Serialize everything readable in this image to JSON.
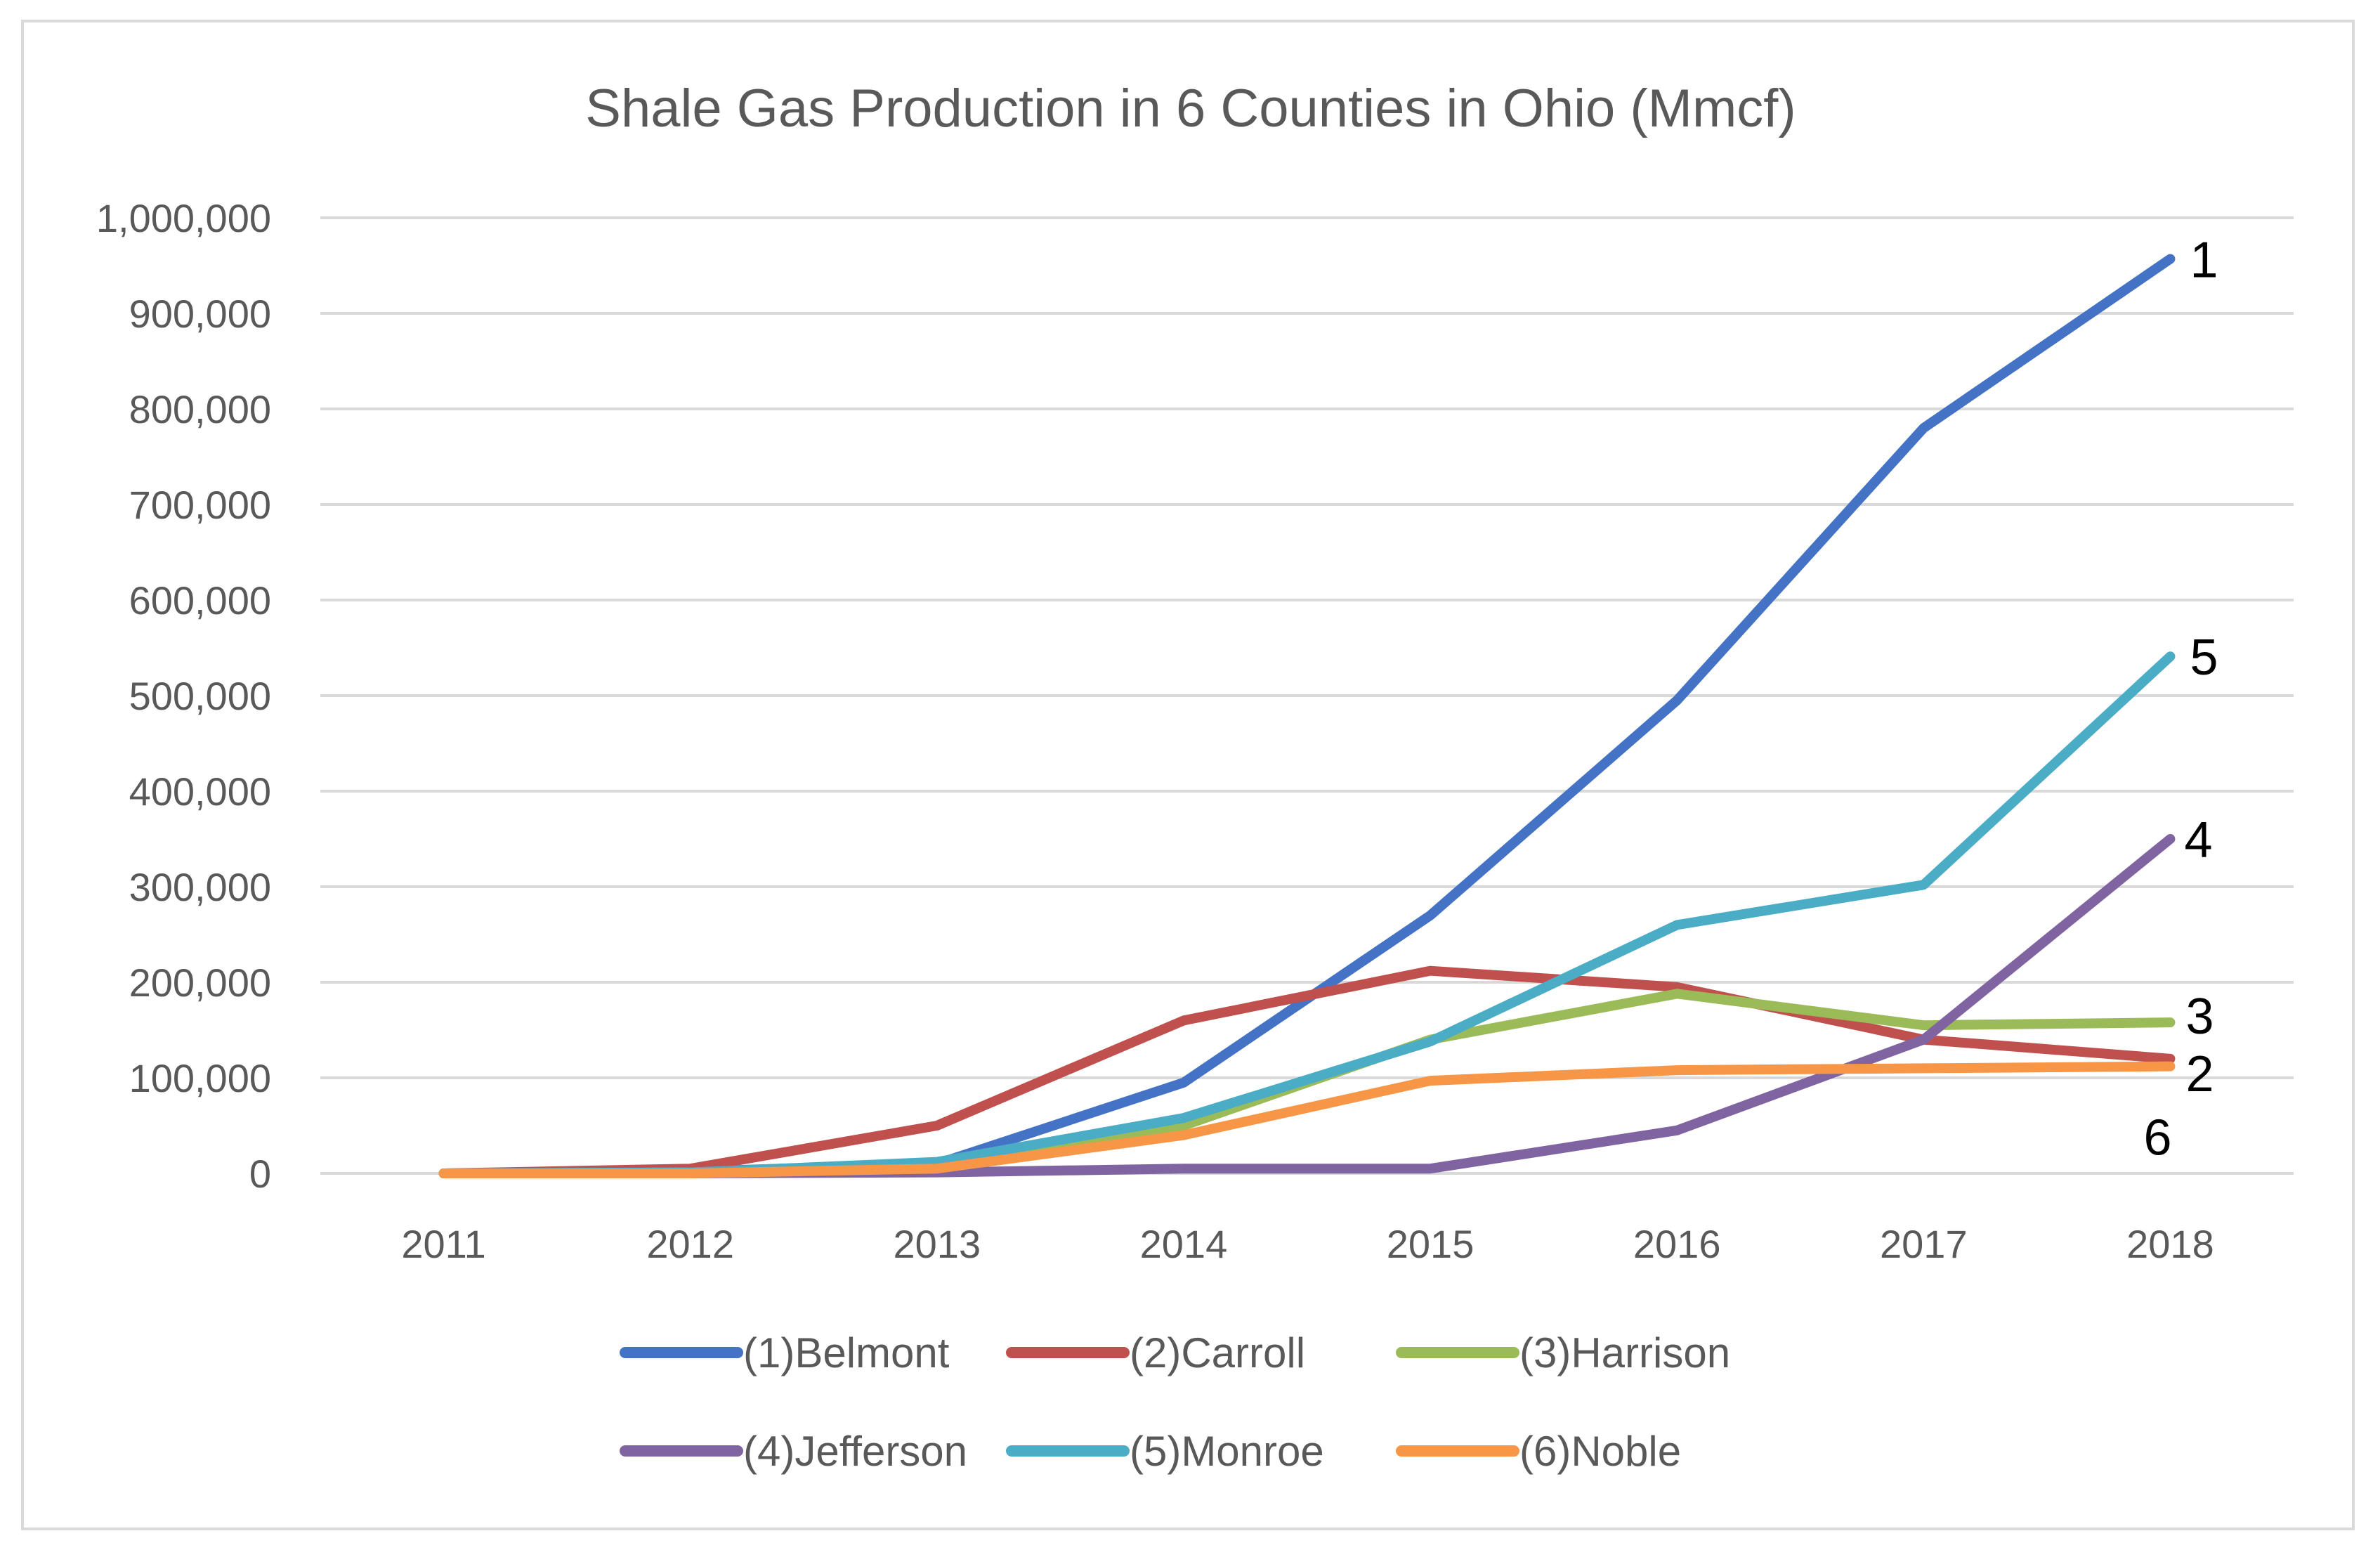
{
  "chart_data": {
    "type": "line",
    "title": "Shale Gas Production in 6 Counties in Ohio (Mmcf)",
    "xlabel": "",
    "ylabel": "",
    "categories": [
      "2011",
      "2012",
      "2013",
      "2014",
      "2015",
      "2016",
      "2017",
      "2018"
    ],
    "ylim": [
      0,
      1000000
    ],
    "yticks": [
      0,
      100000,
      200000,
      300000,
      400000,
      500000,
      600000,
      700000,
      800000,
      900000,
      1000000
    ],
    "ytick_labels": [
      "0",
      "100,000",
      "200,000",
      "300,000",
      "400,000",
      "500,000",
      "600,000",
      "700,000",
      "800,000",
      "900,000",
      "1,000,000"
    ],
    "grid": true,
    "legend_position": "bottom",
    "series": [
      {
        "name": "(1)Belmont",
        "color": "#4472c4",
        "values": [
          0,
          2000,
          10000,
          95000,
          270000,
          495000,
          780000,
          957000
        ]
      },
      {
        "name": "(2)Carroll",
        "color": "#c0504d",
        "values": [
          0,
          5000,
          50000,
          160000,
          212000,
          195000,
          140000,
          120000
        ]
      },
      {
        "name": "(3)Harrison",
        "color": "#9bbb59",
        "values": [
          0,
          1000,
          10000,
          50000,
          140000,
          188000,
          155000,
          158000
        ]
      },
      {
        "name": "(4)Jefferson",
        "color": "#8064a2",
        "values": [
          0,
          0,
          1000,
          5000,
          5000,
          45000,
          140000,
          350000
        ]
      },
      {
        "name": "(5)Monroe",
        "color": "#4bacc6",
        "values": [
          0,
          1000,
          12000,
          58000,
          138000,
          260000,
          302000,
          541000
        ]
      },
      {
        "name": "(6)Noble",
        "color": "#f79646",
        "values": [
          0,
          0,
          5000,
          40000,
          97000,
          108000,
          110000,
          112000
        ]
      }
    ],
    "annotations": [
      {
        "text": "1",
        "series": "(1)Belmont"
      },
      {
        "text": "5",
        "series": "(5)Monroe"
      },
      {
        "text": "4",
        "series": "(4)Jefferson"
      },
      {
        "text": "3",
        "series": "(3)Harrison"
      },
      {
        "text": "2",
        "series": "(2)Carroll"
      },
      {
        "text": "6",
        "series": "(6)Noble"
      }
    ]
  }
}
